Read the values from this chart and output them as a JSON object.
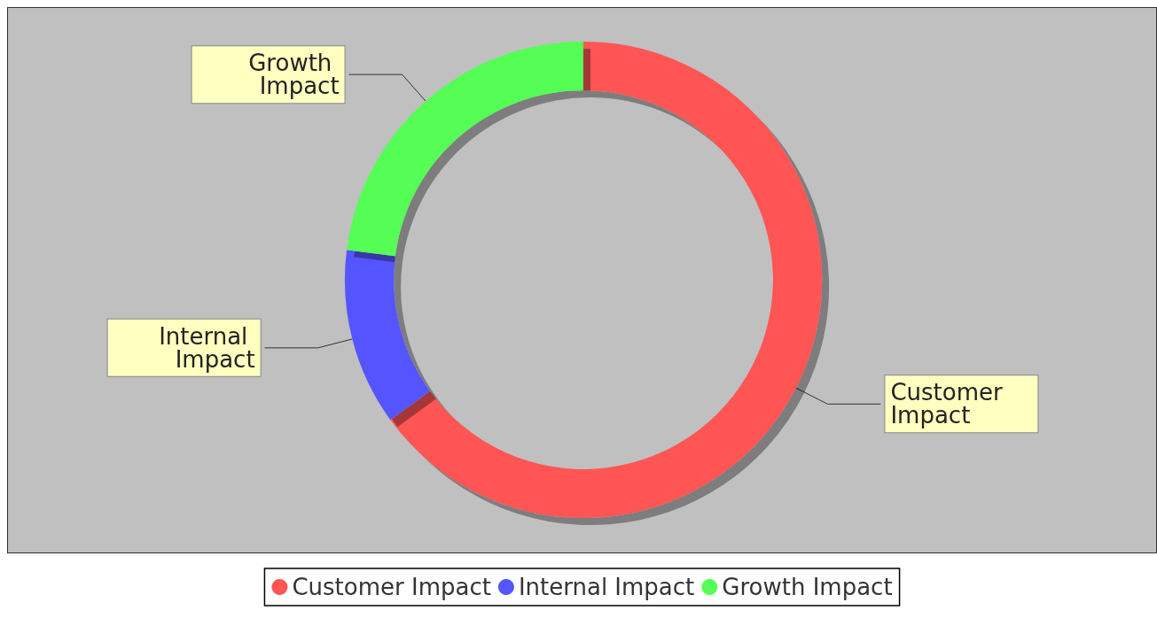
{
  "chart_data": {
    "type": "donut",
    "categories": [
      "Customer Impact",
      "Internal Impact",
      "Growth Impact"
    ],
    "values": [
      65,
      12,
      23
    ],
    "colors": [
      "#ff5555",
      "#5555ff",
      "#55ff55"
    ],
    "legend": "bottom"
  }
}
